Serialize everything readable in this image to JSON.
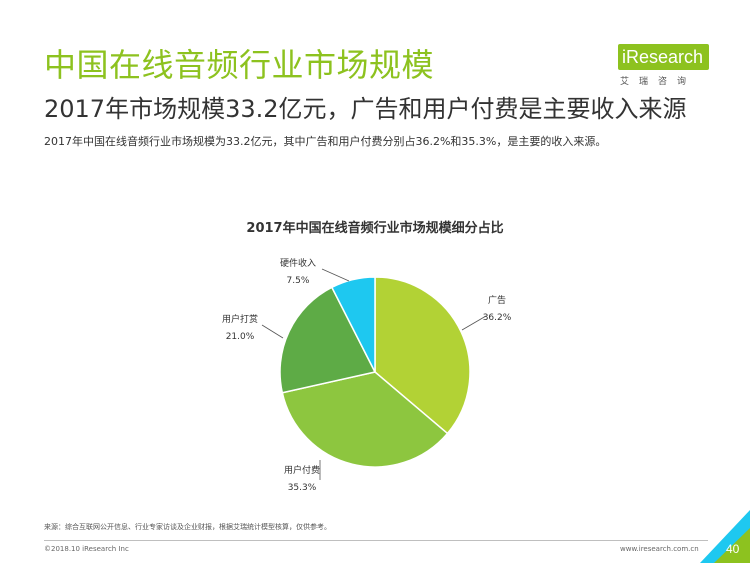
{
  "header": {
    "title": "中国在线音频行业市场规模",
    "subtitle": "2017年市场规模33.2亿元，广告和用户付费是主要收入来源",
    "description": "2017年中国在线音频行业市场规模为33.2亿元，其中广告和用户付费分别占36.2%和35.3%，是主要的收入来源。"
  },
  "logo": {
    "text": "iResearch",
    "subtext": "艾瑞咨询"
  },
  "chart_data": {
    "type": "pie",
    "title": "2017年中国在线音频行业市场规模细分占比",
    "unit": "%",
    "slices": [
      {
        "name": "广告",
        "value": 36.2,
        "value_label": "36.2%",
        "color": "#b2d235"
      },
      {
        "name": "用户付费",
        "value": 35.3,
        "value_label": "35.3%",
        "color": "#8dc63f"
      },
      {
        "name": "用户打赏",
        "value": 21.0,
        "value_label": "21.0%",
        "color": "#5eab46"
      },
      {
        "name": "硬件收入",
        "value": 7.5,
        "value_label": "7.5%",
        "color": "#1ec8f0"
      }
    ]
  },
  "footer": {
    "source": "来源：综合互联网公开信息、行业专家访谈及企业财报，根据艾瑞统计模型核算，仅供参考。",
    "copyright": "©2018.10 iResearch Inc",
    "website": "www.iresearch.com.cn",
    "page_number": "40"
  },
  "colors": {
    "accent": "#8dc21f",
    "corner": "#1ec8f0"
  }
}
